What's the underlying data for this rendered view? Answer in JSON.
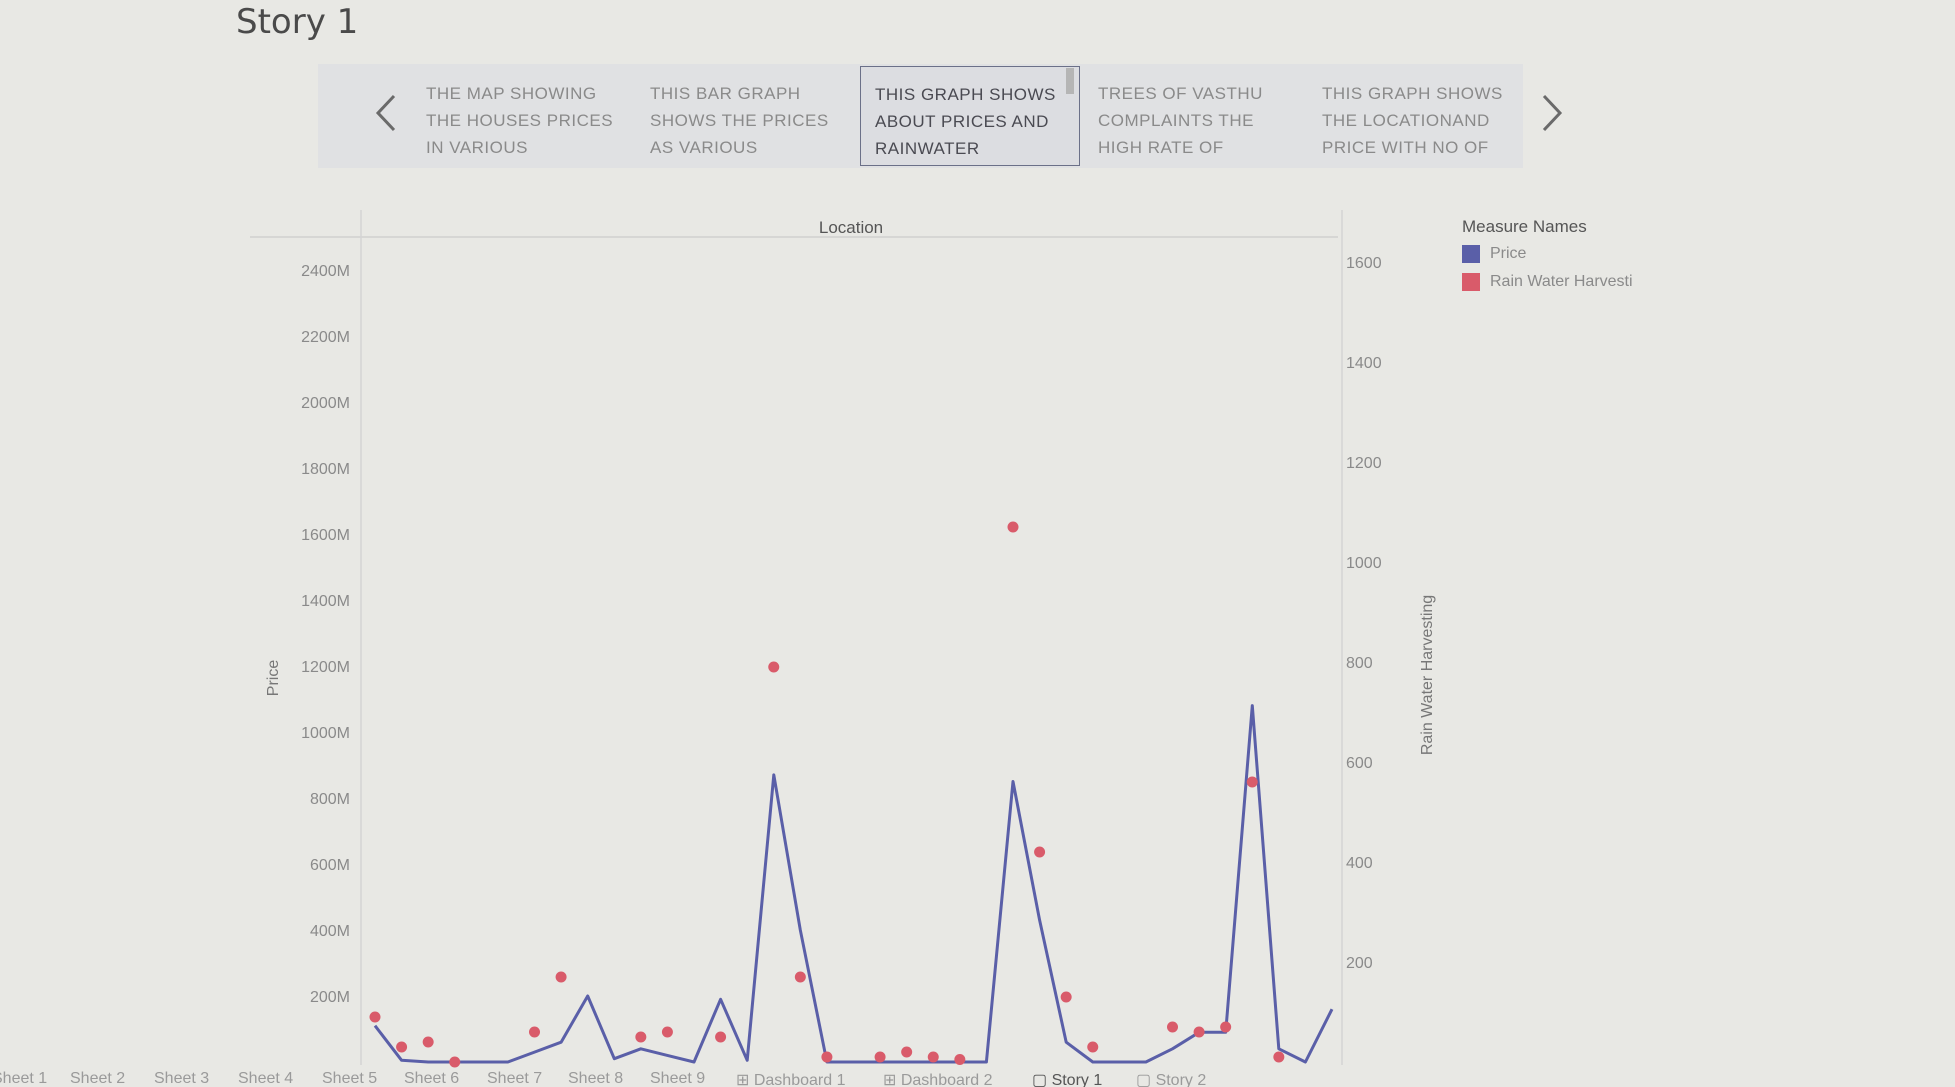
{
  "story": {
    "title": "Story 1"
  },
  "story_points": [
    {
      "lines": [
        "THE MAP SHOWING",
        "THE HOUSES  PRICES",
        "IN VARIOUS"
      ]
    },
    {
      "lines": [
        "THIS BAR GRAPH",
        "SHOWS  THE PRICES",
        "AS VARIOUS"
      ]
    },
    {
      "lines": [
        "THIS GRAPH SHOWS",
        "ABOUT PRICES AND",
        "RAINWATER"
      ]
    },
    {
      "lines": [
        "TREES OF VASTHU",
        "COMPLAINTS  THE",
        "HIGH RATE  OF"
      ]
    },
    {
      "lines": [
        "THIS GRAPH SHOWS",
        "THE LOCATIONAND",
        "PRICE WITH NO OF"
      ]
    }
  ],
  "legend": {
    "title": "Measure Names",
    "items": [
      {
        "label": "Price",
        "color": "#5a5fa8"
      },
      {
        "label": "Rain Water Harvesti",
        "color": "#d95b6a"
      }
    ]
  },
  "chart_data": {
    "type": "line",
    "xlabel": "Location",
    "ylabel": "Price",
    "y2label": "Rain Water Harvesting",
    "ylim": [
      0,
      2500
    ],
    "y2lim": [
      0,
      1650
    ],
    "yticks": [
      "200M",
      "400M",
      "600M",
      "800M",
      "1000M",
      "1200M",
      "1400M",
      "1600M",
      "1800M",
      "2000M",
      "2200M",
      "2400M"
    ],
    "y2ticks": [
      "200",
      "400",
      "600",
      "800",
      "1000",
      "1200",
      "1400",
      "1600"
    ],
    "series": [
      {
        "name": "Price",
        "color": "#5a5fa8",
        "values": [
          110,
          5,
          0,
          0,
          -20,
          0,
          30,
          60,
          200,
          10,
          40,
          20,
          -5,
          190,
          5,
          870,
          400,
          -20,
          0,
          0,
          0,
          -10,
          -10,
          0,
          850,
          430,
          60,
          0,
          0,
          0,
          40,
          90,
          90,
          1080,
          40,
          0,
          160
        ]
      },
      {
        "name": "Rain Water Harvesti",
        "color": "#d95b6a",
        "values": [
          90,
          30,
          40,
          0,
          null,
          null,
          60,
          170,
          null,
          null,
          50,
          60,
          null,
          50,
          null,
          790,
          170,
          10,
          null,
          10,
          20,
          10,
          5,
          null,
          1070,
          420,
          130,
          30,
          null,
          null,
          70,
          60,
          70,
          560,
          10,
          null,
          null
        ]
      }
    ]
  },
  "sheet_tabs": [
    "Sheet 1",
    "Sheet 2",
    "Sheet 3",
    "Sheet 4",
    "Sheet 5",
    "Sheet 6",
    "Sheet 7",
    "Sheet 8",
    "Sheet 9",
    "⊞ Dashboard 1",
    "⊞ Dashboard 2",
    "▢ Story 1",
    "▢ Story 2"
  ]
}
